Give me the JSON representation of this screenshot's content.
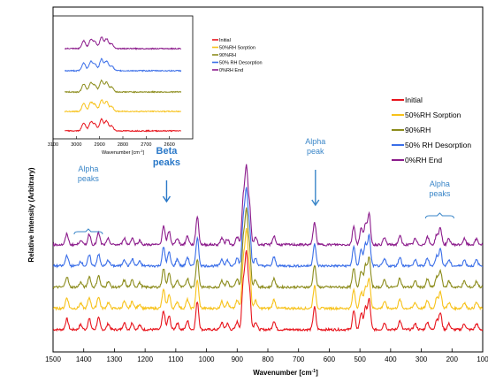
{
  "chart_data": [
    {
      "type": "line",
      "role": "main",
      "xlabel": "Wavenumber [cm",
      "xlabel_superscript": "-1",
      "xlabel_suffix": "]",
      "ylabel": "Relative Intensity (Arbitrary)",
      "xlim": [
        1500,
        100
      ],
      "x_reversed": true,
      "x_ticks": [
        1500,
        1400,
        1300,
        1200,
        1100,
        1000,
        900,
        800,
        700,
        600,
        500,
        400,
        300,
        200,
        100
      ],
      "grid": false,
      "legend_position": "top-right",
      "series": [
        {
          "name": "Initial",
          "color": "#e8141c"
        },
        {
          "name": "50%RH Sorption",
          "color": "#f7c21a"
        },
        {
          "name": "90%RH",
          "color": "#8c8c1c"
        },
        {
          "name": "50% RH Desorption",
          "color": "#3a6ee8"
        },
        {
          "name": "0%RH End",
          "color": "#8c1c8c"
        }
      ],
      "peaks": [
        {
          "x": 1455,
          "h": 0.55
        },
        {
          "x": 1410,
          "h": 0.25
        },
        {
          "x": 1382,
          "h": 0.55
        },
        {
          "x": 1352,
          "h": 0.6
        },
        {
          "x": 1320,
          "h": 0.3
        },
        {
          "x": 1268,
          "h": 0.35
        },
        {
          "x": 1242,
          "h": 0.35
        },
        {
          "x": 1218,
          "h": 0.22
        },
        {
          "x": 1140,
          "h": 0.95
        },
        {
          "x": 1122,
          "h": 0.7
        },
        {
          "x": 1095,
          "h": 0.35
        },
        {
          "x": 1062,
          "h": 0.45
        },
        {
          "x": 1030,
          "h": 1.45
        },
        {
          "x": 950,
          "h": 0.35
        },
        {
          "x": 932,
          "h": 0.3
        },
        {
          "x": 900,
          "h": 0.4
        },
        {
          "x": 880,
          "h": 2.3
        },
        {
          "x": 870,
          "h": 3.7
        },
        {
          "x": 860,
          "h": 1.9
        },
        {
          "x": 840,
          "h": 0.4
        },
        {
          "x": 780,
          "h": 0.45
        },
        {
          "x": 648,
          "h": 1.15
        },
        {
          "x": 520,
          "h": 0.95
        },
        {
          "x": 496,
          "h": 0.85
        },
        {
          "x": 482,
          "h": 1.1
        },
        {
          "x": 470,
          "h": 1.55
        },
        {
          "x": 420,
          "h": 0.35
        },
        {
          "x": 370,
          "h": 0.45
        },
        {
          "x": 320,
          "h": 0.3
        },
        {
          "x": 280,
          "h": 0.4
        },
        {
          "x": 250,
          "h": 0.5
        },
        {
          "x": 238,
          "h": 0.85
        },
        {
          "x": 210,
          "h": 0.3
        },
        {
          "x": 160,
          "h": 0.3
        },
        {
          "x": 120,
          "h": 0.3
        }
      ],
      "annotations": [
        {
          "text": "Alpha",
          "text2": "peaks",
          "x": 1385,
          "color": "#3a86c8",
          "style": "brace"
        },
        {
          "text": "Beta",
          "text2": "peaks",
          "x": 1130,
          "color": "#2a78c8",
          "style": "arrow",
          "bold": true
        },
        {
          "text": "Alpha",
          "text2": "peak",
          "x": 645,
          "color": "#3a86c8",
          "style": "arrow"
        },
        {
          "text": "Alpha",
          "text2": "peaks",
          "x": 240,
          "color": "#3a86c8",
          "style": "brace"
        }
      ]
    },
    {
      "type": "line",
      "role": "inset",
      "xlabel": "Wavenumber [cm",
      "xlabel_superscript": "-1",
      "xlabel_suffix": "]",
      "xlim": [
        3100,
        2500
      ],
      "x_reversed": true,
      "x_ticks": [
        3100,
        3000,
        2900,
        2800,
        2700,
        2600
      ],
      "legend_position": "right",
      "series": [
        {
          "name": "Initial",
          "color": "#e8141c"
        },
        {
          "name": "50%RH Sorption",
          "color": "#f7c21a"
        },
        {
          "name": "90%RH",
          "color": "#8c8c1c"
        },
        {
          "name": "50% RH Desorption",
          "color": "#3a6ee8"
        },
        {
          "name": "0%RH End",
          "color": "#8c1c8c"
        }
      ],
      "peaks": [
        {
          "x": 2968,
          "h": 0.9
        },
        {
          "x": 2938,
          "h": 1.0
        },
        {
          "x": 2920,
          "h": 0.75
        },
        {
          "x": 2892,
          "h": 1.3
        },
        {
          "x": 2870,
          "h": 1.1
        },
        {
          "x": 2848,
          "h": 0.55
        }
      ]
    }
  ]
}
